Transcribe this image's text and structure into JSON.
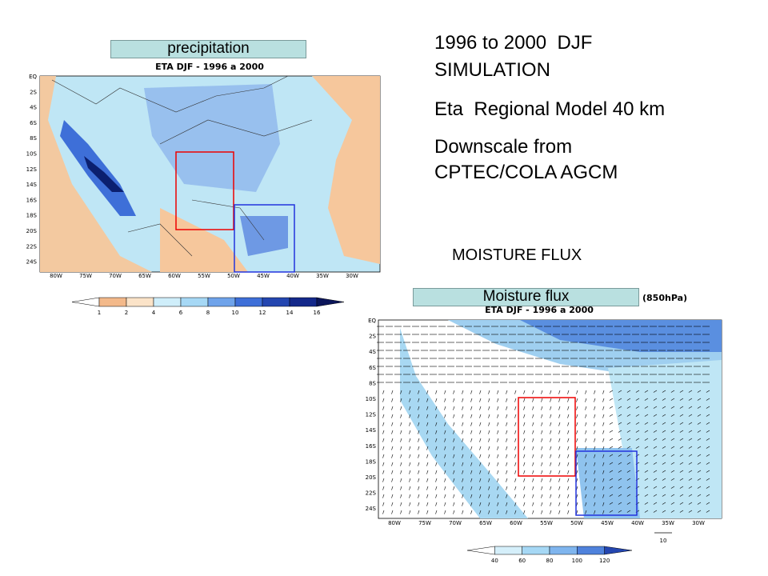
{
  "slide": {
    "notes": [
      "1996 to 2000  DJF",
      "SIMULATION",
      "Eta  Regional Model 40 km",
      "Downscale from",
      "CPTEC/COLA AGCM"
    ],
    "section_title": "MOISTURE FLUX"
  },
  "precip_panel": {
    "label": "precipitation",
    "title": "ETA DJF - 1996 a 2000",
    "lat_labels": [
      "EQ",
      "2S",
      "4S",
      "6S",
      "8S",
      "10S",
      "12S",
      "14S",
      "16S",
      "18S",
      "20S",
      "22S",
      "24S"
    ],
    "lon_labels": [
      "80W",
      "75W",
      "70W",
      "65W",
      "60W",
      "55W",
      "50W",
      "45W",
      "40W",
      "35W",
      "30W"
    ],
    "colorbar_labels": [
      "1",
      "2",
      "4",
      "6",
      "8",
      "10",
      "12",
      "14",
      "16"
    ]
  },
  "moisture_panel": {
    "label": "Moisture flux",
    "title": "ETA DJF - 1996 a 2000",
    "level": "(850hPa)",
    "lat_labels": [
      "EQ",
      "2S",
      "4S",
      "6S",
      "8S",
      "10S",
      "12S",
      "14S",
      "16S",
      "18S",
      "20S",
      "22S",
      "24S"
    ],
    "lon_labels": [
      "80W",
      "75W",
      "70W",
      "65W",
      "60W",
      "55W",
      "50W",
      "45W",
      "40W",
      "35W",
      "30W"
    ],
    "reference_vector": "10",
    "colorbar_labels": [
      "40",
      "60",
      "80",
      "100",
      "120"
    ]
  }
}
